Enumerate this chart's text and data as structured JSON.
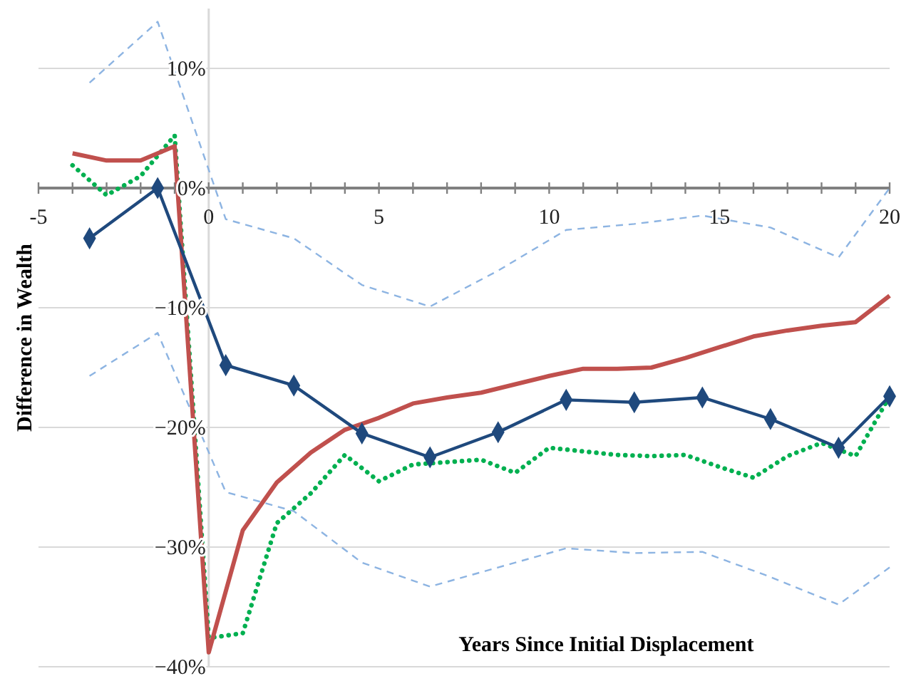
{
  "chart_data": {
    "type": "line",
    "xlabel": "Years Since Initial Displacement",
    "ylabel": "Difference in Wealth",
    "xlim": [
      -5,
      20
    ],
    "ylim": [
      -40,
      15
    ],
    "xticks": [
      -5,
      {
        "value": -4,
        "label": null
      },
      {
        "value": -3,
        "label": null
      },
      {
        "value": -2,
        "label": null
      },
      {
        "value": -1,
        "label": null
      },
      0,
      {
        "value": 1,
        "label": null
      },
      {
        "value": 2,
        "label": null
      },
      {
        "value": 3,
        "label": null
      },
      {
        "value": 4,
        "label": null
      },
      5,
      {
        "value": 6,
        "label": null
      },
      {
        "value": 7,
        "label": null
      },
      {
        "value": 8,
        "label": null
      },
      {
        "value": 9,
        "label": null
      },
      10,
      {
        "value": 11,
        "label": null
      },
      {
        "value": 12,
        "label": null
      },
      {
        "value": 13,
        "label": null
      },
      {
        "value": 14,
        "label": null
      },
      15,
      {
        "value": 16,
        "label": null
      },
      {
        "value": 17,
        "label": null
      },
      {
        "value": 18,
        "label": null
      },
      {
        "value": 19,
        "label": null
      },
      20
    ],
    "yticks": [
      {
        "value": -40,
        "label": "−40%"
      },
      {
        "value": -30,
        "label": "−30%"
      },
      {
        "value": -20,
        "label": "−20%"
      },
      {
        "value": -10,
        "label": "−10%"
      },
      {
        "value": 0,
        "label": "0%"
      },
      {
        "value": 10,
        "label": "10%"
      }
    ],
    "grid": "y",
    "series": [
      {
        "color": "#8db4e2",
        "line_style": "dashed",
        "marker": "none",
        "x": [
          -3.5,
          -1.5,
          0.5,
          2.5,
          4.5,
          6.5,
          8.5,
          10.5,
          12.5,
          14.5,
          16.5,
          18.5,
          20
        ],
        "values": [
          8.8,
          13.9,
          -2.6,
          -4.2,
          -8.1,
          -9.9,
          -6.9,
          -3.5,
          -3.0,
          -2.3,
          -3.3,
          -5.8,
          0
        ]
      },
      {
        "color": "#8db4e2",
        "line_style": "dashed",
        "marker": "none",
        "x": [
          -3.5,
          -1.5,
          0.5,
          2.5,
          4.5,
          6.5,
          8.5,
          10.5,
          12.5,
          14.5,
          16.5,
          18.5,
          20
        ],
        "values": [
          -15.7,
          -12.1,
          -25.4,
          -27.0,
          -31.3,
          -33.3,
          -31.7,
          -30.1,
          -30.5,
          -30.4,
          -32.5,
          -34.8,
          -31.7
        ]
      },
      {
        "color": "#00b050",
        "line_style": "dotted",
        "marker": "none",
        "x": [
          -4,
          -3,
          -2,
          -1,
          0,
          1,
          2,
          3,
          4,
          5,
          6,
          7,
          8,
          9,
          10,
          11,
          12,
          13,
          14,
          15,
          16,
          17,
          18,
          19,
          20
        ],
        "values": [
          1.9,
          -0.6,
          1.0,
          4.4,
          -37.6,
          -37.2,
          -28.0,
          -25.5,
          -22.3,
          -24.5,
          -23.1,
          -22.9,
          -22.7,
          -23.8,
          -21.7,
          -22.0,
          -22.3,
          -22.4,
          -22.3,
          -23.3,
          -24.2,
          -22.4,
          -21.3,
          -22.4,
          -17.4
        ]
      },
      {
        "color": "#c0504d",
        "line_style": "solid",
        "marker": "none",
        "x": [
          -4,
          -3,
          -2,
          -1,
          0,
          1,
          2,
          3,
          4,
          5,
          6,
          7,
          8,
          9,
          10,
          11,
          12,
          13,
          14,
          15,
          16,
          17,
          18,
          19,
          20
        ],
        "values": [
          2.9,
          2.3,
          2.3,
          3.5,
          -38.8,
          -28.6,
          -24.6,
          -22.1,
          -20.2,
          -19.2,
          -18.0,
          -17.5,
          -17.1,
          -16.4,
          -15.7,
          -15.1,
          -15.1,
          -15.0,
          -14.2,
          -13.3,
          -12.4,
          -11.9,
          -11.5,
          -11.2,
          -9.0
        ]
      },
      {
        "color": "#1f497d",
        "line_style": "solid",
        "marker": "diamond",
        "x": [
          -3.5,
          -1.5,
          0.5,
          2.5,
          4.5,
          6.5,
          8.5,
          10.5,
          12.5,
          14.5,
          16.5,
          18.5,
          20
        ],
        "values": [
          -4.2,
          0,
          -14.8,
          -16.5,
          -20.5,
          -22.5,
          -20.4,
          -17.7,
          -17.9,
          -17.5,
          -19.3,
          -21.7,
          -17.4
        ]
      }
    ]
  }
}
